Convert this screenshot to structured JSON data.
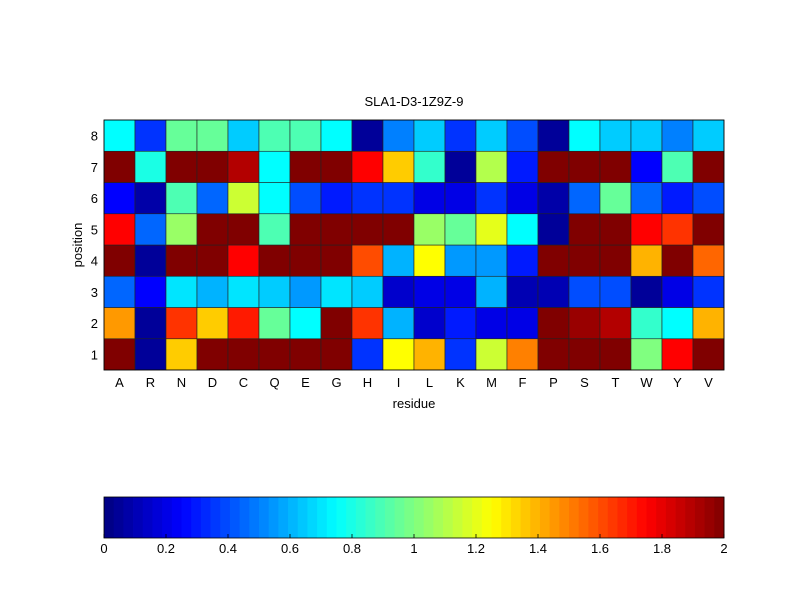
{
  "chart_data": {
    "type": "heatmap",
    "title": "SLA1-D3-1Z9Z-9",
    "xlabel": "residue",
    "ylabel": "position",
    "x_categories": [
      "A",
      "R",
      "N",
      "D",
      "C",
      "Q",
      "E",
      "G",
      "H",
      "I",
      "L",
      "K",
      "M",
      "F",
      "P",
      "S",
      "T",
      "W",
      "Y",
      "V"
    ],
    "y_categories": [
      "1",
      "2",
      "3",
      "4",
      "5",
      "6",
      "7",
      "8"
    ],
    "values": [
      [
        2,
        0.05,
        1.35,
        2,
        2,
        2,
        2,
        2,
        0.35,
        1.25,
        1.4,
        0.35,
        1.15,
        1.5,
        2,
        2,
        2,
        1.0,
        1.75,
        2
      ],
      [
        1.45,
        0.05,
        1.65,
        1.35,
        1.7,
        0.95,
        0.75,
        2,
        1.65,
        0.6,
        0.15,
        0.3,
        0.2,
        0.2,
        2,
        1.95,
        1.9,
        0.85,
        0.75,
        1.4
      ],
      [
        0.45,
        0.25,
        0.7,
        0.6,
        0.7,
        0.65,
        0.55,
        0.7,
        0.65,
        0.15,
        0.2,
        0.2,
        0.6,
        0.1,
        0.1,
        0.4,
        0.4,
        0.05,
        0.2,
        0.35
      ],
      [
        2,
        0.05,
        2,
        2,
        1.75,
        2,
        2,
        2,
        1.6,
        0.6,
        1.25,
        0.55,
        0.55,
        0.3,
        2,
        2,
        2,
        1.4,
        2,
        1.55
      ],
      [
        1.75,
        0.45,
        1.05,
        2,
        2,
        0.9,
        2,
        2,
        2,
        2,
        1.05,
        0.95,
        1.2,
        0.75,
        0.05,
        2,
        2,
        1.75,
        1.65,
        2
      ],
      [
        0.25,
        0.08,
        0.9,
        0.45,
        1.15,
        0.75,
        0.4,
        0.3,
        0.35,
        0.35,
        0.2,
        0.2,
        0.35,
        0.2,
        0.08,
        0.45,
        0.95,
        0.45,
        0.3,
        0.4
      ],
      [
        2,
        0.8,
        2,
        2,
        1.9,
        0.75,
        2,
        2,
        1.75,
        1.35,
        0.85,
        0.05,
        1.1,
        0.3,
        2,
        2,
        2,
        0.25,
        0.9,
        2
      ],
      [
        0.75,
        0.35,
        0.95,
        0.95,
        0.65,
        0.9,
        0.9,
        0.75,
        0.05,
        0.5,
        0.65,
        0.35,
        0.65,
        0.4,
        0.05,
        0.75,
        0.65,
        0.65,
        0.5,
        0.65
      ]
    ],
    "colormap": "jet",
    "clim": [
      0,
      2
    ],
    "colorbar": {
      "placement": "bottom",
      "ticks": [
        "0",
        "0.2",
        "0.4",
        "0.6",
        "0.8",
        "1",
        "1.2",
        "1.4",
        "1.6",
        "1.8",
        "2"
      ]
    }
  }
}
